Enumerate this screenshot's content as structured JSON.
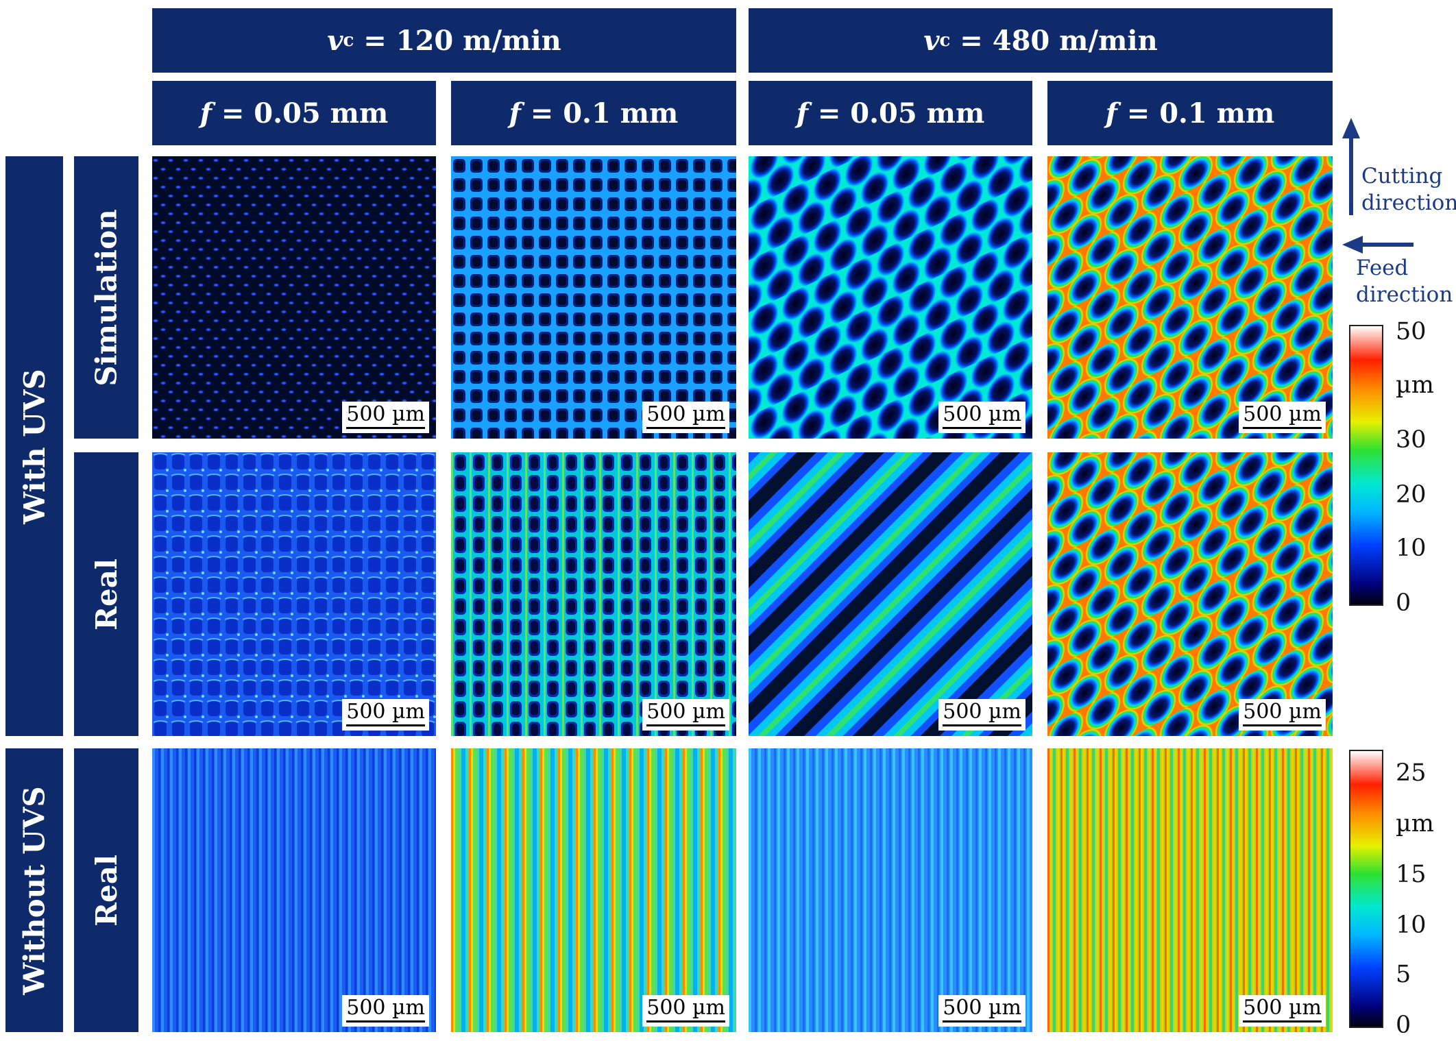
{
  "headers": {
    "vc_left": {
      "symbol": "v",
      "sub": "c",
      "text": " = 120 m/min"
    },
    "vc_right": {
      "symbol": "v",
      "sub": "c",
      "text": " = 480 m/min"
    },
    "f_cols": [
      {
        "symbol": "f",
        "text": " = 0.05 mm"
      },
      {
        "symbol": "f",
        "text": " = 0.1 mm"
      },
      {
        "symbol": "f",
        "text": " = 0.05 mm"
      },
      {
        "symbol": "f",
        "text": " = 0.1 mm"
      }
    ]
  },
  "row_groups": {
    "with_uvs": "With UVS",
    "without_uvs": "Without UVS"
  },
  "row_labels": {
    "simulation": "Simulation",
    "real_1": "Real",
    "real_2": "Real"
  },
  "scale_bar": "500 µm",
  "directions": {
    "cutting": [
      "Cutting",
      "direction"
    ],
    "feed": [
      "Feed",
      "direction"
    ]
  },
  "colorbar_top": {
    "ticks": [
      "50",
      "µm",
      "30",
      "20",
      "10",
      "0"
    ]
  },
  "colorbar_bottom": {
    "ticks": [
      "25",
      "µm",
      "15",
      "10",
      "5",
      "0"
    ]
  },
  "colors": {
    "header_bg": "#0e2a6b",
    "arrow": "#1a3a85"
  }
}
